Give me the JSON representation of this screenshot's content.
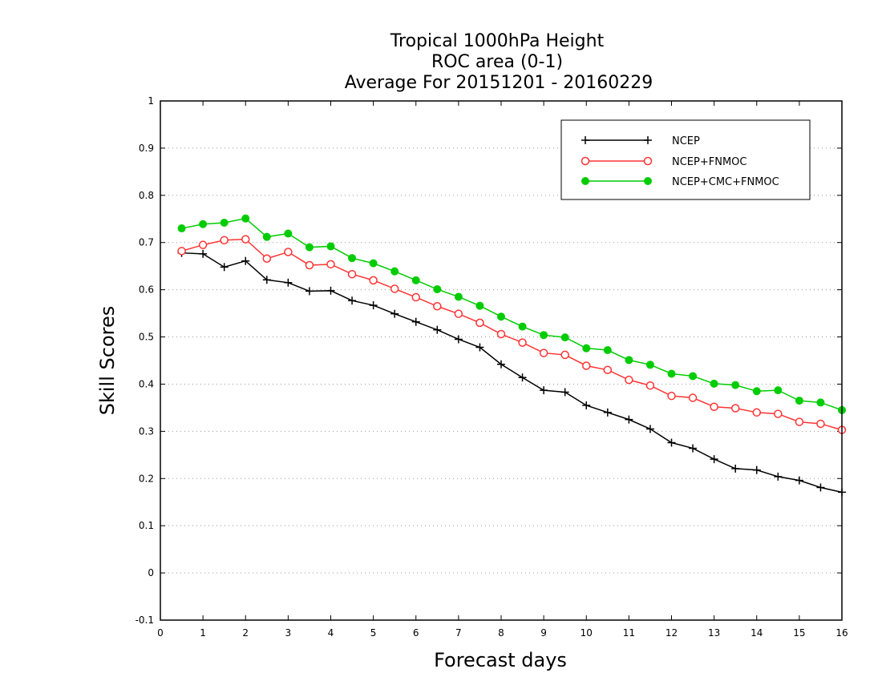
{
  "chart_data": {
    "type": "line",
    "title": [
      "Tropical 1000hPa Height",
      "ROC area (0-1)",
      "Average For 20151201 - 20160229"
    ],
    "xlabel": "Forecast days",
    "ylabel": "Skill Scores",
    "xlim": [
      0,
      16
    ],
    "ylim": [
      -0.1,
      1
    ],
    "x_ticks": [
      "0",
      "1",
      "2",
      "3",
      "4",
      "5",
      "6",
      "7",
      "8",
      "9",
      "10",
      "11",
      "12",
      "13",
      "14",
      "15",
      "16"
    ],
    "y_ticks": [
      "-0.1",
      "0",
      "0.1",
      "0.2",
      "0.3",
      "0.4",
      "0.5",
      "0.6",
      "0.7",
      "0.8",
      "0.9",
      "1"
    ],
    "grid": "horizontal dotted",
    "legend_position": "top-right",
    "x": [
      0.5,
      1,
      1.5,
      2,
      2.5,
      3,
      3.5,
      4,
      4.5,
      5,
      5.5,
      6,
      6.5,
      7,
      7.5,
      8,
      8.5,
      9,
      9.5,
      10,
      10.5,
      11,
      11.5,
      12,
      12.5,
      13,
      13.5,
      14,
      14.5,
      15,
      15.5,
      16
    ],
    "series": [
      {
        "name": "NCEP",
        "color": "#000000",
        "marker": "plus",
        "values": [
          0.678,
          0.676,
          0.648,
          0.661,
          0.621,
          0.615,
          0.597,
          0.598,
          0.577,
          0.567,
          0.549,
          0.532,
          0.515,
          0.495,
          0.478,
          0.442,
          0.414,
          0.387,
          0.383,
          0.355,
          0.34,
          0.325,
          0.305,
          0.276,
          0.264,
          0.241,
          0.221,
          0.218,
          0.204,
          0.196,
          0.181,
          0.171
        ]
      },
      {
        "name": "NCEP+FNMOC",
        "color": "#ff3333",
        "marker": "open-circle",
        "values": [
          0.682,
          0.695,
          0.705,
          0.707,
          0.666,
          0.68,
          0.652,
          0.654,
          0.633,
          0.62,
          0.602,
          0.584,
          0.565,
          0.549,
          0.53,
          0.506,
          0.488,
          0.466,
          0.462,
          0.439,
          0.43,
          0.409,
          0.397,
          0.375,
          0.371,
          0.352,
          0.349,
          0.34,
          0.337,
          0.32,
          0.316,
          0.303
        ]
      },
      {
        "name": "NCEP+CMC+FNMOC",
        "color": "#00cc00",
        "marker": "filled-circle",
        "values": [
          0.73,
          0.739,
          0.742,
          0.751,
          0.712,
          0.719,
          0.69,
          0.692,
          0.667,
          0.656,
          0.639,
          0.62,
          0.601,
          0.585,
          0.566,
          0.543,
          0.522,
          0.504,
          0.499,
          0.476,
          0.472,
          0.451,
          0.441,
          0.422,
          0.417,
          0.401,
          0.398,
          0.385,
          0.387,
          0.365,
          0.361,
          0.345
        ]
      }
    ]
  }
}
